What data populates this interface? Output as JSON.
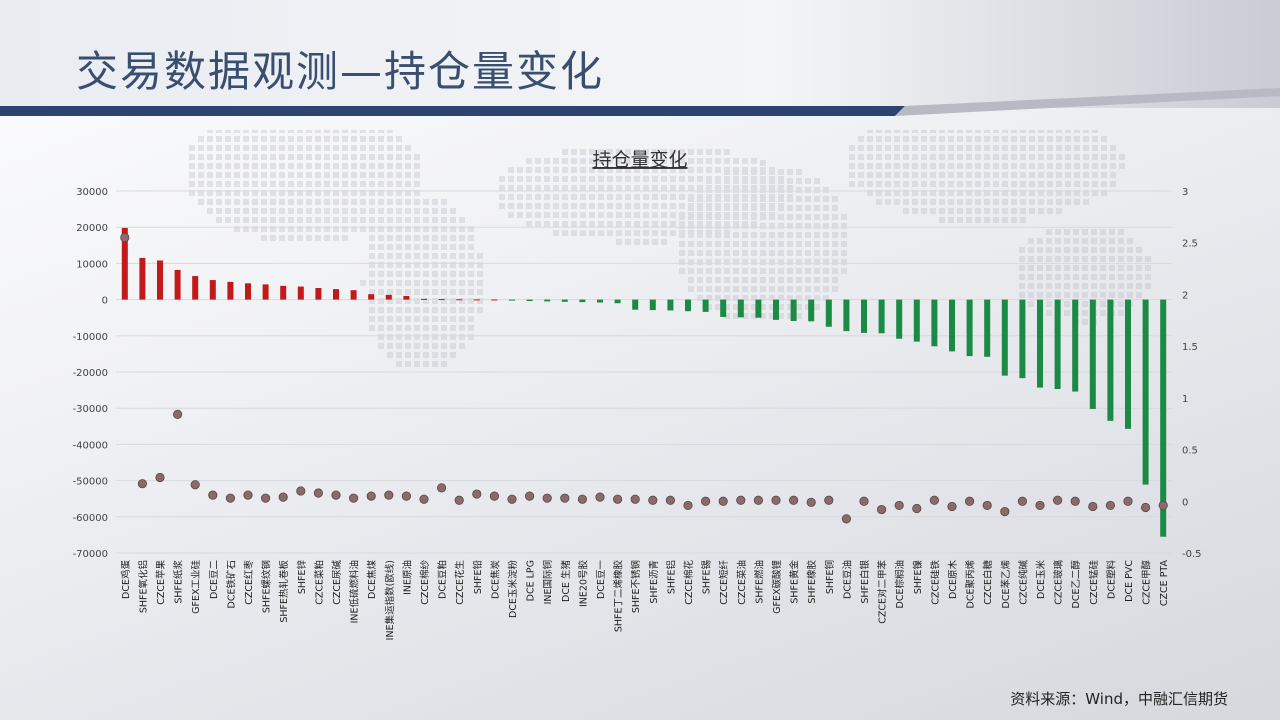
{
  "slide": {
    "title": "交易数据观测—持仓量变化",
    "source": "资料来源：Wind，中融汇信期货"
  },
  "colors": {
    "positive_bar": "#c21a1a",
    "negative_bar": "#1b8a45",
    "dot": "#8a6a6a",
    "title": "#3a4f6f",
    "accent_bar": "#2d4470"
  },
  "chart_data": {
    "type": "bar",
    "title": "持仓量变化",
    "categories": [
      "DCE鸡蛋",
      "SHFE氧化铝",
      "CZCE苹果",
      "SHFE纸浆",
      "GFEX工业硅",
      "DCE豆二",
      "DCE铁矿石",
      "CZCE红枣",
      "SHFE螺纹钢",
      "SHFE热轧卷板",
      "SHFE锌",
      "CZCE菜粕",
      "CZCE尿碱",
      "INE低硫燃料油",
      "DCE焦煤",
      "INE集运指数(欧线)",
      "INE原油",
      "CZCE棉纱",
      "DCE豆粕",
      "CZCE花生",
      "SHFE铅",
      "DCE焦炭",
      "DCE玉米淀粉",
      "DCE LPG",
      "INE国际铜",
      "DCE 生猪",
      "INE20号胶",
      "DCE豆一",
      "SHFE丁二烯橡胶",
      "SHFE不锈钢",
      "SHFE沥青",
      "SHFE铝",
      "CZCE棉花",
      "SHFE锡",
      "CZCE短纤",
      "CZCE菜油",
      "SHFE燃油",
      "GFEX碳酸锂",
      "SHFE黄金",
      "SHFE橡胶",
      "SHFE铜",
      "DCE豆油",
      "SHFE白银",
      "CZCE对二甲苯",
      "DCE棕榈油",
      "SHFE镍",
      "CZCE硅铁",
      "DCE原木",
      "DCE聚丙烯",
      "CZCE白糖",
      "DCE苯乙烯",
      "CZCE纯碱",
      "DCE玉米",
      "CZCE玻璃",
      "DCE乙二醇",
      "CZCE锰硅",
      "DCE塑料",
      "DCE PVC",
      "CZCE甲醇",
      "CZCE PTA"
    ],
    "series": [
      {
        "axis": "left",
        "values": [
          19800,
          11500,
          10800,
          8200,
          6500,
          5400,
          4900,
          4500,
          4200,
          3800,
          3600,
          3200,
          2900,
          2600,
          1500,
          1300,
          1000,
          200,
          150,
          100,
          50,
          30,
          -200,
          -400,
          -500,
          -600,
          -700,
          -800,
          -1000,
          -2800,
          -2900,
          -3000,
          -3200,
          -3400,
          -4800,
          -4900,
          -5000,
          -5600,
          -5900,
          -6000,
          -7500,
          -8700,
          -9200,
          -9300,
          -10800,
          -11600,
          -12900,
          -14300,
          -15600,
          -15800,
          -21000,
          -21700,
          -24300,
          -24700,
          -25400,
          -30200,
          -33500,
          -35700,
          -51100,
          -65500
        ]
      },
      {
        "axis": "right",
        "values": [
          2.55,
          0.17,
          0.23,
          0.84,
          0.16,
          0.06,
          0.03,
          0.06,
          0.03,
          0.04,
          0.1,
          0.08,
          0.06,
          0.03,
          0.05,
          0.06,
          0.05,
          0.02,
          0.13,
          0.01,
          0.07,
          0.05,
          0.02,
          0.05,
          0.03,
          0.03,
          0.02,
          0.04,
          0.02,
          0.02,
          0.01,
          0.01,
          -0.04,
          0.0,
          0.0,
          0.01,
          0.01,
          0.01,
          0.01,
          -0.01,
          0.01,
          -0.17,
          0.0,
          -0.08,
          -0.04,
          -0.07,
          0.01,
          -0.05,
          0.0,
          -0.04,
          -0.1,
          0.0,
          -0.04,
          0.01,
          0.0,
          -0.05,
          -0.04,
          0.0,
          -0.06,
          -0.04
        ]
      }
    ],
    "yleft": {
      "min": -70000,
      "max": 30000,
      "ticks": [
        "30000",
        "20000",
        "10000",
        "0",
        "-10000",
        "-20000",
        "-30000",
        "-40000",
        "-50000",
        "-60000",
        "-70000"
      ]
    },
    "yright": {
      "min": -0.5,
      "max": 3,
      "ticks": [
        "3",
        "2.5",
        "2",
        "1.5",
        "1",
        "0.5",
        "0",
        "-0.5"
      ]
    },
    "grid": true,
    "legend": "none"
  }
}
